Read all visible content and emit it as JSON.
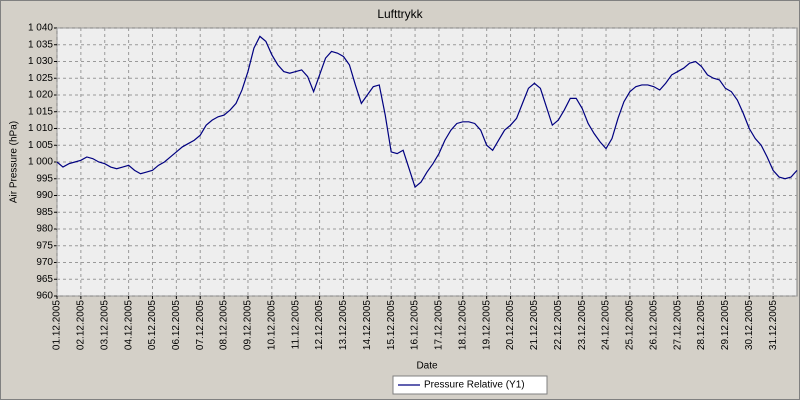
{
  "chart_data": {
    "type": "line",
    "title": "Lufttrykk",
    "x_label": "Date",
    "y_label": "Air Pressure (hPa)",
    "categories": [
      "01.12.2005",
      null,
      null,
      null,
      "02.12.2005",
      null,
      null,
      null,
      "03.12.2005",
      null,
      null,
      null,
      "04.12.2005",
      null,
      null,
      null,
      "05.12.2005",
      null,
      null,
      null,
      "06.12.2005",
      null,
      null,
      null,
      "07.12.2005",
      null,
      null,
      null,
      "08.12.2005",
      null,
      null,
      null,
      "09.12.2005",
      null,
      null,
      null,
      "10.12.2005",
      null,
      null,
      null,
      "11.12.2005",
      null,
      null,
      null,
      "12.12.2005",
      null,
      null,
      null,
      "13.12.2005",
      null,
      null,
      null,
      "14.12.2005",
      null,
      null,
      null,
      "15.12.2005",
      null,
      null,
      null,
      "16.12.2005",
      null,
      null,
      null,
      "17.12.2005",
      null,
      null,
      null,
      "18.12.2005",
      null,
      null,
      null,
      "19.12.2005",
      null,
      null,
      null,
      "20.12.2005",
      null,
      null,
      null,
      "21.12.2005",
      null,
      null,
      null,
      "22.12.2005",
      null,
      null,
      null,
      "23.12.2005",
      null,
      null,
      null,
      "24.12.2005",
      null,
      null,
      null,
      "25.12.2005",
      null,
      null,
      null,
      "26.12.2005",
      null,
      null,
      null,
      "27.12.2005",
      null,
      null,
      null,
      "28.12.2005",
      null,
      null,
      null,
      "29.12.2005",
      null,
      null,
      null,
      "30.12.2005",
      null,
      null,
      null,
      "31.12.2005",
      null,
      null,
      null,
      null
    ],
    "series": [
      {
        "name": "Pressure Relative (Y1)",
        "color": "#000080",
        "values": [
          1000,
          998.5,
          999.5,
          1000,
          1000.5,
          1001.5,
          1001,
          1000,
          999.5,
          998.5,
          998,
          998.5,
          999,
          997.5,
          996.5,
          997,
          997.5,
          999,
          1000,
          1001.5,
          1003,
          1004.5,
          1005.5,
          1006.5,
          1008,
          1011,
          1012.5,
          1013.5,
          1014,
          1015.5,
          1017.5,
          1021.5,
          1027,
          1034,
          1037.5,
          1036,
          1032,
          1029,
          1027,
          1026.5,
          1027,
          1027.5,
          1025.5,
          1021,
          1026,
          1031,
          1033,
          1032.5,
          1031.5,
          1029,
          1023,
          1017.5,
          1020,
          1022.5,
          1023,
          1014,
          1003,
          1002.5,
          1003.5,
          998,
          992.5,
          994,
          997,
          999.5,
          1002.5,
          1006.5,
          1009.5,
          1011.5,
          1012,
          1012,
          1011.5,
          1009.5,
          1005,
          1003.5,
          1006.5,
          1009.5,
          1011,
          1013,
          1017.5,
          1022,
          1023.5,
          1022,
          1016.5,
          1011,
          1012.5,
          1015.5,
          1019,
          1019,
          1016,
          1011.5,
          1008.5,
          1006,
          1004,
          1007,
          1013,
          1018,
          1021,
          1022.5,
          1023,
          1023,
          1022.5,
          1021.5,
          1023.5,
          1026,
          1027,
          1028,
          1029.5,
          1030,
          1028.5,
          1026,
          1025,
          1024.5,
          1022,
          1021,
          1018.5,
          1014.5,
          1010,
          1007,
          1005,
          1001.5,
          997.5,
          995.5,
          995,
          995.5,
          997.5
        ]
      }
    ],
    "ylim": [
      960,
      1040
    ],
    "yticks": [
      960,
      965,
      970,
      975,
      980,
      985,
      990,
      995,
      {
        "value": 1000,
        "label": "1 000"
      },
      {
        "value": 1005,
        "label": "1 005"
      },
      {
        "value": 1010,
        "label": "1 010"
      },
      {
        "value": 1015,
        "label": "1 015"
      },
      {
        "value": 1020,
        "label": "1 020"
      },
      {
        "value": 1025,
        "label": "1 025"
      },
      {
        "value": 1030,
        "label": "1 030"
      },
      {
        "value": 1035,
        "label": "1 035"
      },
      {
        "value": 1040,
        "label": "1 040"
      }
    ],
    "grid": true,
    "legend": "bottom"
  }
}
